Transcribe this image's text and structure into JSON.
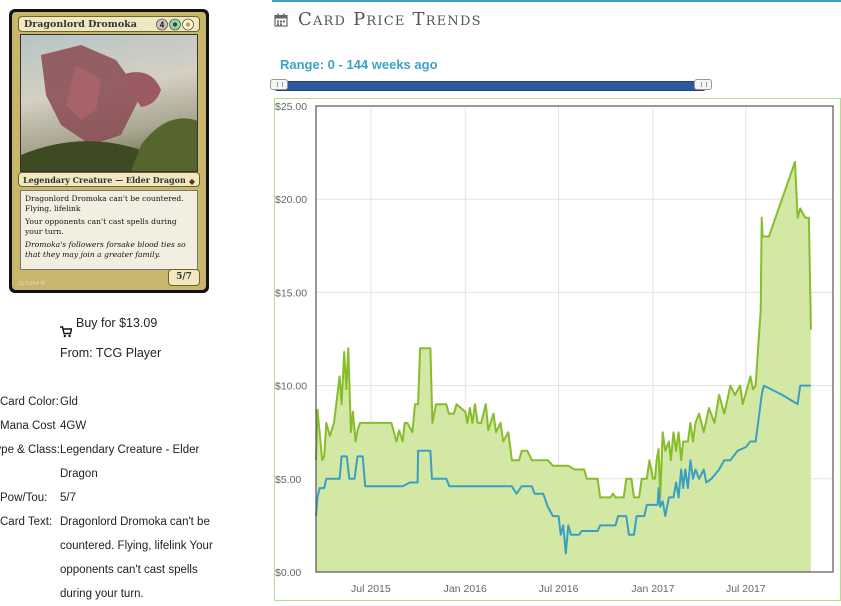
{
  "card": {
    "name": "Dragonlord Dromoka",
    "mana_cost": "4GW",
    "type_line": "Legendary Creature — Elder Dragon",
    "rules_text": "Dragonlord Dromoka can't be countered. Flying, lifelink",
    "rules_text_2": "Your opponents can't cast spells during your turn.",
    "flavor_text": "Dromoka's followers forsake blood ties so that they may join a greater family.",
    "power_toughness": "5/7",
    "collector_line": "217/264 M"
  },
  "buy": {
    "label": "Buy for $13.09",
    "from": "From: TCG Player"
  },
  "details": [
    {
      "label": "Card Color:",
      "value": "Gld"
    },
    {
      "label": "Mana Cost",
      "value": "4GW"
    },
    {
      "label": "Type & Class:",
      "value": "Legendary Creature - Elder Dragon"
    },
    {
      "label": "Pow/Tou:",
      "value": "5/7"
    },
    {
      "label": "Card Text:",
      "value": "Dragonlord Dromoka can't be countered. Flying, lifelink Your opponents can't cast spells during your turn."
    }
  ],
  "header": {
    "title": "Card Price Trends",
    "icon": "calendar-icon"
  },
  "range_label": "Range: 0 - 144 weeks ago",
  "colors": {
    "accent": "#35a5c2",
    "paper_line": "#86bd2a",
    "paper_fill": "#d4e8a6",
    "online_line": "#3a9fc2"
  },
  "chart_data": {
    "type": "area",
    "title": "",
    "xlabel": "",
    "ylabel": "",
    "ylim": [
      0,
      25
    ],
    "xlim": [
      "2015-03-16",
      "2017-12-18"
    ],
    "y_ticks": [
      "$0.00",
      "$5.00",
      "$10.00",
      "$15.00",
      "$20.00",
      "$25.00"
    ],
    "x_ticks": [
      {
        "label": "Jul 2015",
        "date": "2015-07-01"
      },
      {
        "label": "Jan 2016",
        "date": "2016-01-01"
      },
      {
        "label": "Jul 2016",
        "date": "2016-07-01"
      },
      {
        "label": "Jan 2017",
        "date": "2017-01-01"
      },
      {
        "label": "Jul 2017",
        "date": "2017-07-01"
      }
    ],
    "grid": true,
    "series": [
      {
        "values": [
          [
            "2015-03-16",
            6.0
          ],
          [
            "2015-03-19",
            8.7
          ],
          [
            "2015-03-23",
            7.5
          ],
          [
            "2015-03-28",
            6.0
          ],
          [
            "2015-04-01",
            6.2
          ],
          [
            "2015-04-05",
            8.0
          ],
          [
            "2015-04-12",
            7.3
          ],
          [
            "2015-04-20",
            8.0
          ],
          [
            "2015-05-01",
            10.5
          ],
          [
            "2015-05-05",
            9.0
          ],
          [
            "2015-05-10",
            11.8
          ],
          [
            "2015-05-14",
            9.8
          ],
          [
            "2015-05-18",
            12.0
          ],
          [
            "2015-05-23",
            7.5
          ],
          [
            "2015-05-27",
            8.6
          ],
          [
            "2015-06-01",
            7.0
          ],
          [
            "2015-06-05",
            7.6
          ],
          [
            "2015-06-10",
            8.0
          ],
          [
            "2015-07-15",
            8.0
          ],
          [
            "2015-08-01",
            8.0
          ],
          [
            "2015-08-10",
            8.0
          ],
          [
            "2015-08-20",
            7.0
          ],
          [
            "2015-08-25",
            7.6
          ],
          [
            "2015-09-01",
            7.0
          ],
          [
            "2015-09-05",
            8.0
          ],
          [
            "2015-09-10",
            8.0
          ],
          [
            "2015-09-20",
            7.5
          ],
          [
            "2015-09-25",
            9.0
          ],
          [
            "2015-10-01",
            9.0
          ],
          [
            "2015-10-05",
            12.0
          ],
          [
            "2015-10-25",
            12.0
          ],
          [
            "2015-10-29",
            8.0
          ],
          [
            "2015-11-05",
            9.0
          ],
          [
            "2015-11-25",
            9.0
          ],
          [
            "2015-11-30",
            8.5
          ],
          [
            "2015-12-10",
            8.5
          ],
          [
            "2015-12-15",
            9.0
          ],
          [
            "2016-01-01",
            8.6
          ],
          [
            "2016-01-05",
            8.0
          ],
          [
            "2016-01-10",
            8.8
          ],
          [
            "2016-01-15",
            8.0
          ],
          [
            "2016-01-20",
            9.0
          ],
          [
            "2016-01-25",
            8.0
          ],
          [
            "2016-02-01",
            8.0
          ],
          [
            "2016-02-10",
            9.0
          ],
          [
            "2016-02-15",
            7.6
          ],
          [
            "2016-02-25",
            8.5
          ],
          [
            "2016-03-01",
            7.5
          ],
          [
            "2016-03-10",
            8.0
          ],
          [
            "2016-03-15",
            7.0
          ],
          [
            "2016-03-25",
            7.5
          ],
          [
            "2016-04-01",
            6.0
          ],
          [
            "2016-04-15",
            6.0
          ],
          [
            "2016-04-20",
            6.5
          ],
          [
            "2016-05-01",
            6.5
          ],
          [
            "2016-05-10",
            6.0
          ],
          [
            "2016-05-25",
            6.0
          ],
          [
            "2016-06-10",
            6.0
          ],
          [
            "2016-06-20",
            5.7
          ],
          [
            "2016-07-20",
            5.7
          ],
          [
            "2016-08-01",
            5.5
          ],
          [
            "2016-08-20",
            5.5
          ],
          [
            "2016-08-25",
            5.0
          ],
          [
            "2016-09-15",
            5.0
          ],
          [
            "2016-09-20",
            4.0
          ],
          [
            "2016-10-10",
            4.0
          ],
          [
            "2016-10-15",
            4.2
          ],
          [
            "2016-10-20",
            4.0
          ],
          [
            "2016-11-05",
            4.0
          ],
          [
            "2016-11-10",
            5.0
          ],
          [
            "2016-11-20",
            5.0
          ],
          [
            "2016-11-25",
            4.0
          ],
          [
            "2016-12-05",
            4.0
          ],
          [
            "2016-12-10",
            5.0
          ],
          [
            "2016-12-20",
            5.0
          ],
          [
            "2016-12-25",
            6.0
          ],
          [
            "2017-01-01",
            5.0
          ],
          [
            "2017-01-05",
            5.0
          ],
          [
            "2017-01-08",
            6.0
          ],
          [
            "2017-01-12",
            6.6
          ],
          [
            "2017-01-15",
            4.0
          ],
          [
            "2017-01-20",
            7.5
          ],
          [
            "2017-01-25",
            6.5
          ],
          [
            "2017-02-01",
            7.0
          ],
          [
            "2017-02-05",
            6.0
          ],
          [
            "2017-02-10",
            7.5
          ],
          [
            "2017-02-15",
            6.5
          ],
          [
            "2017-02-20",
            7.5
          ],
          [
            "2017-02-25",
            6.0
          ],
          [
            "2017-03-01",
            7.0
          ],
          [
            "2017-03-10",
            7.0
          ],
          [
            "2017-03-15",
            8.0
          ],
          [
            "2017-03-20",
            7.0
          ],
          [
            "2017-03-25",
            8.0
          ],
          [
            "2017-04-01",
            8.5
          ],
          [
            "2017-04-10",
            7.5
          ],
          [
            "2017-04-20",
            8.8
          ],
          [
            "2017-05-01",
            8.0
          ],
          [
            "2017-05-10",
            9.5
          ],
          [
            "2017-05-20",
            8.5
          ],
          [
            "2017-06-01",
            10.0
          ],
          [
            "2017-06-10",
            9.5
          ],
          [
            "2017-06-20",
            10.0
          ],
          [
            "2017-06-25",
            9.0
          ],
          [
            "2017-07-05",
            10.0
          ],
          [
            "2017-07-10",
            10.5
          ],
          [
            "2017-07-15",
            9.8
          ],
          [
            "2017-07-20",
            10.0
          ],
          [
            "2017-07-25",
            12.0
          ],
          [
            "2017-07-30",
            14.0
          ],
          [
            "2017-08-01",
            19.0
          ],
          [
            "2017-08-03",
            18.0
          ],
          [
            "2017-08-15",
            18.0
          ],
          [
            "2017-10-05",
            22.0
          ],
          [
            "2017-10-10",
            19.0
          ],
          [
            "2017-10-15",
            19.5
          ],
          [
            "2017-10-25",
            19.0
          ],
          [
            "2017-11-01",
            19.0
          ],
          [
            "2017-11-05",
            13.0
          ]
        ]
      },
      {
        "values": [
          [
            "2015-03-16",
            3.0
          ],
          [
            "2015-03-19",
            4.0
          ],
          [
            "2015-03-23",
            4.5
          ],
          [
            "2015-04-01",
            4.5
          ],
          [
            "2015-04-05",
            5.0
          ],
          [
            "2015-05-01",
            5.0
          ],
          [
            "2015-05-05",
            6.2
          ],
          [
            "2015-05-15",
            6.2
          ],
          [
            "2015-05-20",
            5.0
          ],
          [
            "2015-05-30",
            5.0
          ],
          [
            "2015-06-05",
            6.2
          ],
          [
            "2015-06-15",
            6.2
          ],
          [
            "2015-06-20",
            4.6
          ],
          [
            "2015-09-01",
            4.6
          ],
          [
            "2015-09-15",
            4.8
          ],
          [
            "2015-09-30",
            4.8
          ],
          [
            "2015-10-01",
            6.5
          ],
          [
            "2015-10-25",
            6.5
          ],
          [
            "2015-10-28",
            5.0
          ],
          [
            "2015-11-25",
            5.0
          ],
          [
            "2015-12-01",
            4.6
          ],
          [
            "2016-04-01",
            4.6
          ],
          [
            "2016-04-10",
            4.2
          ],
          [
            "2016-04-20",
            4.6
          ],
          [
            "2016-05-10",
            4.6
          ],
          [
            "2016-05-15",
            4.2
          ],
          [
            "2016-06-01",
            4.2
          ],
          [
            "2016-06-10",
            3.5
          ],
          [
            "2016-06-20",
            3.0
          ],
          [
            "2016-07-01",
            3.0
          ],
          [
            "2016-07-05",
            2.0
          ],
          [
            "2016-07-10",
            2.5
          ],
          [
            "2016-07-15",
            1.0
          ],
          [
            "2016-07-20",
            2.5
          ],
          [
            "2016-07-25",
            2.0
          ],
          [
            "2016-08-10",
            2.0
          ],
          [
            "2016-08-15",
            2.2
          ],
          [
            "2016-09-15",
            2.2
          ],
          [
            "2016-09-20",
            2.5
          ],
          [
            "2016-10-20",
            2.5
          ],
          [
            "2016-10-25",
            3.0
          ],
          [
            "2016-11-10",
            3.0
          ],
          [
            "2016-11-15",
            2.0
          ],
          [
            "2016-11-25",
            2.0
          ],
          [
            "2016-11-30",
            3.0
          ],
          [
            "2016-12-15",
            3.0
          ],
          [
            "2016-12-20",
            3.6
          ],
          [
            "2017-01-10",
            3.6
          ],
          [
            "2017-01-12",
            4.5
          ],
          [
            "2017-01-15",
            3.5
          ],
          [
            "2017-01-20",
            3.8
          ],
          [
            "2017-01-25",
            3.0
          ],
          [
            "2017-02-01",
            4.0
          ],
          [
            "2017-02-10",
            4.0
          ],
          [
            "2017-02-15",
            4.8
          ],
          [
            "2017-02-20",
            4.0
          ],
          [
            "2017-02-25",
            5.5
          ],
          [
            "2017-03-01",
            4.5
          ],
          [
            "2017-03-05",
            5.5
          ],
          [
            "2017-03-10",
            4.5
          ],
          [
            "2017-03-15",
            6.0
          ],
          [
            "2017-03-20",
            5.0
          ],
          [
            "2017-03-25",
            5.5
          ],
          [
            "2017-04-01",
            5.0
          ],
          [
            "2017-04-10",
            5.5
          ],
          [
            "2017-04-15",
            4.8
          ],
          [
            "2017-04-25",
            5.0
          ],
          [
            "2017-05-01",
            5.2
          ],
          [
            "2017-05-10",
            5.5
          ],
          [
            "2017-05-20",
            6.0
          ],
          [
            "2017-06-01",
            6.0
          ],
          [
            "2017-06-15",
            6.5
          ],
          [
            "2017-07-01",
            6.7
          ],
          [
            "2017-07-10",
            7.0
          ],
          [
            "2017-07-20",
            7.0
          ],
          [
            "2017-07-25",
            8.0
          ],
          [
            "2017-08-01",
            9.5
          ],
          [
            "2017-08-05",
            10.0
          ],
          [
            "2017-09-10",
            9.5
          ],
          [
            "2017-10-10",
            9.0
          ],
          [
            "2017-10-15",
            10.0
          ],
          [
            "2017-11-05",
            10.0
          ]
        ]
      }
    ]
  }
}
